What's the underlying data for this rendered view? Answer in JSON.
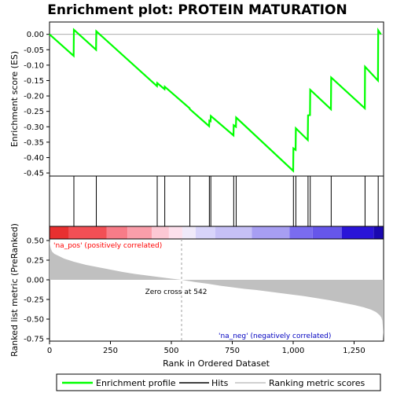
{
  "chart_data": {
    "type": "line",
    "title": "Enrichment plot: PROTEIN MATURATION",
    "colors": {
      "enrichment": "#00ff00",
      "hits": "#000000",
      "ranking": "#c0c0c0",
      "pos_text": "#ff0000",
      "neg_text": "#0000c0",
      "zero_line": "#a0a0a0"
    },
    "top_panel": {
      "ylabel": "Enrichment score (ES)",
      "ylim": [
        -0.46,
        0.04
      ],
      "yticks": [
        0.0,
        -0.05,
        -0.1,
        -0.15,
        -0.2,
        -0.25,
        -0.3,
        -0.35,
        -0.4,
        -0.45
      ],
      "ytick_labels": [
        "0.00",
        "-0.05",
        "-0.10",
        "-0.15",
        "-0.20",
        "-0.25",
        "-0.30",
        "-0.35",
        "-0.40",
        "-0.45"
      ],
      "series": {
        "name": "Enrichment profile",
        "x": [
          0,
          99,
          100,
          191,
          192,
          441,
          442,
          472,
          473,
          575,
          576,
          655,
          656,
          661,
          662,
          755,
          756,
          765,
          766,
          1000,
          1001,
          1010,
          1011,
          1060,
          1061,
          1069,
          1070,
          1155,
          1156,
          1294,
          1295,
          1348,
          1349,
          1360
        ],
        "y": [
          0.0,
          -0.07,
          0.015,
          -0.05,
          0.01,
          -0.168,
          -0.158,
          -0.178,
          -0.17,
          -0.24,
          -0.243,
          -0.298,
          -0.28,
          -0.282,
          -0.265,
          -0.328,
          -0.295,
          -0.3,
          -0.27,
          -0.443,
          -0.37,
          -0.375,
          -0.305,
          -0.343,
          -0.263,
          -0.262,
          -0.18,
          -0.243,
          -0.14,
          -0.24,
          -0.105,
          -0.15,
          0.013,
          0.0
        ]
      }
    },
    "hits": {
      "x": [
        100,
        192,
        442,
        473,
        576,
        656,
        662,
        756,
        766,
        1001,
        1011,
        1061,
        1070,
        1156,
        1295,
        1349
      ]
    },
    "colorbar": {
      "segments": [
        {
          "x0": 0,
          "x1": 80,
          "color": "#e83030"
        },
        {
          "x0": 80,
          "x1": 235,
          "color": "#f24f55"
        },
        {
          "x0": 235,
          "x1": 320,
          "color": "#f77c88"
        },
        {
          "x0": 320,
          "x1": 420,
          "color": "#fa9eaa"
        },
        {
          "x0": 420,
          "x1": 490,
          "color": "#fcc8d4"
        },
        {
          "x0": 490,
          "x1": 545,
          "color": "#fde0ec"
        },
        {
          "x0": 545,
          "x1": 600,
          "color": "#f0eafa"
        },
        {
          "x0": 600,
          "x1": 680,
          "color": "#d8d4fa"
        },
        {
          "x0": 680,
          "x1": 830,
          "color": "#c6c0f6"
        },
        {
          "x0": 830,
          "x1": 985,
          "color": "#a79ef2"
        },
        {
          "x0": 985,
          "x1": 1080,
          "color": "#7a6cf0"
        },
        {
          "x0": 1080,
          "x1": 1200,
          "color": "#6656ea"
        },
        {
          "x0": 1200,
          "x1": 1330,
          "color": "#2a14d8"
        },
        {
          "x0": 1330,
          "x1": 1371,
          "color": "#1a08b0"
        }
      ]
    },
    "bottom_panel": {
      "ylabel": "Ranked list metric (PreRanked)",
      "ylim": [
        -0.78,
        0.52
      ],
      "yticks": [
        0.5,
        0.25,
        0.0,
        -0.25,
        -0.5,
        -0.75
      ],
      "ytick_labels": [
        "0.50",
        "0.25",
        "0.00",
        "-0.25",
        "-0.50",
        "-0.75"
      ],
      "metric": {
        "x": [
          0,
          2,
          5,
          10,
          20,
          40,
          60,
          100,
          150,
          200,
          250,
          300,
          350,
          400,
          450,
          500,
          542,
          600,
          650,
          700,
          750,
          800,
          850,
          900,
          950,
          1000,
          1050,
          1100,
          1150,
          1200,
          1250,
          1290,
          1320,
          1340,
          1355,
          1362,
          1366,
          1368,
          1370,
          1371
        ],
        "y": [
          0.52,
          0.45,
          0.4,
          0.36,
          0.33,
          0.3,
          0.27,
          0.23,
          0.19,
          0.16,
          0.13,
          0.1,
          0.075,
          0.055,
          0.035,
          0.015,
          0.0,
          -0.03,
          -0.05,
          -0.075,
          -0.095,
          -0.115,
          -0.13,
          -0.15,
          -0.17,
          -0.19,
          -0.21,
          -0.235,
          -0.26,
          -0.29,
          -0.32,
          -0.35,
          -0.38,
          -0.41,
          -0.45,
          -0.48,
          -0.52,
          -0.6,
          -0.7,
          -0.75
        ]
      },
      "zero_cross_x": 542,
      "zero_cross_label": "Zero cross at 542",
      "pos_label": "'na_pos' (positively correlated)",
      "neg_label": "'na_neg' (negatively correlated)"
    },
    "x_axis": {
      "label": "Rank in Ordered Dataset",
      "xlim": [
        0,
        1371
      ],
      "ticks": [
        0,
        250,
        500,
        750,
        1000,
        1250
      ],
      "tick_labels": [
        "0",
        "250",
        "500",
        "750",
        "1,000",
        "1,250"
      ]
    },
    "legend": {
      "items": [
        {
          "label": "Enrichment profile",
          "kind": "green-line"
        },
        {
          "label": "Hits",
          "kind": "black-line"
        },
        {
          "label": "Ranking metric scores",
          "kind": "gray-line"
        }
      ]
    }
  }
}
